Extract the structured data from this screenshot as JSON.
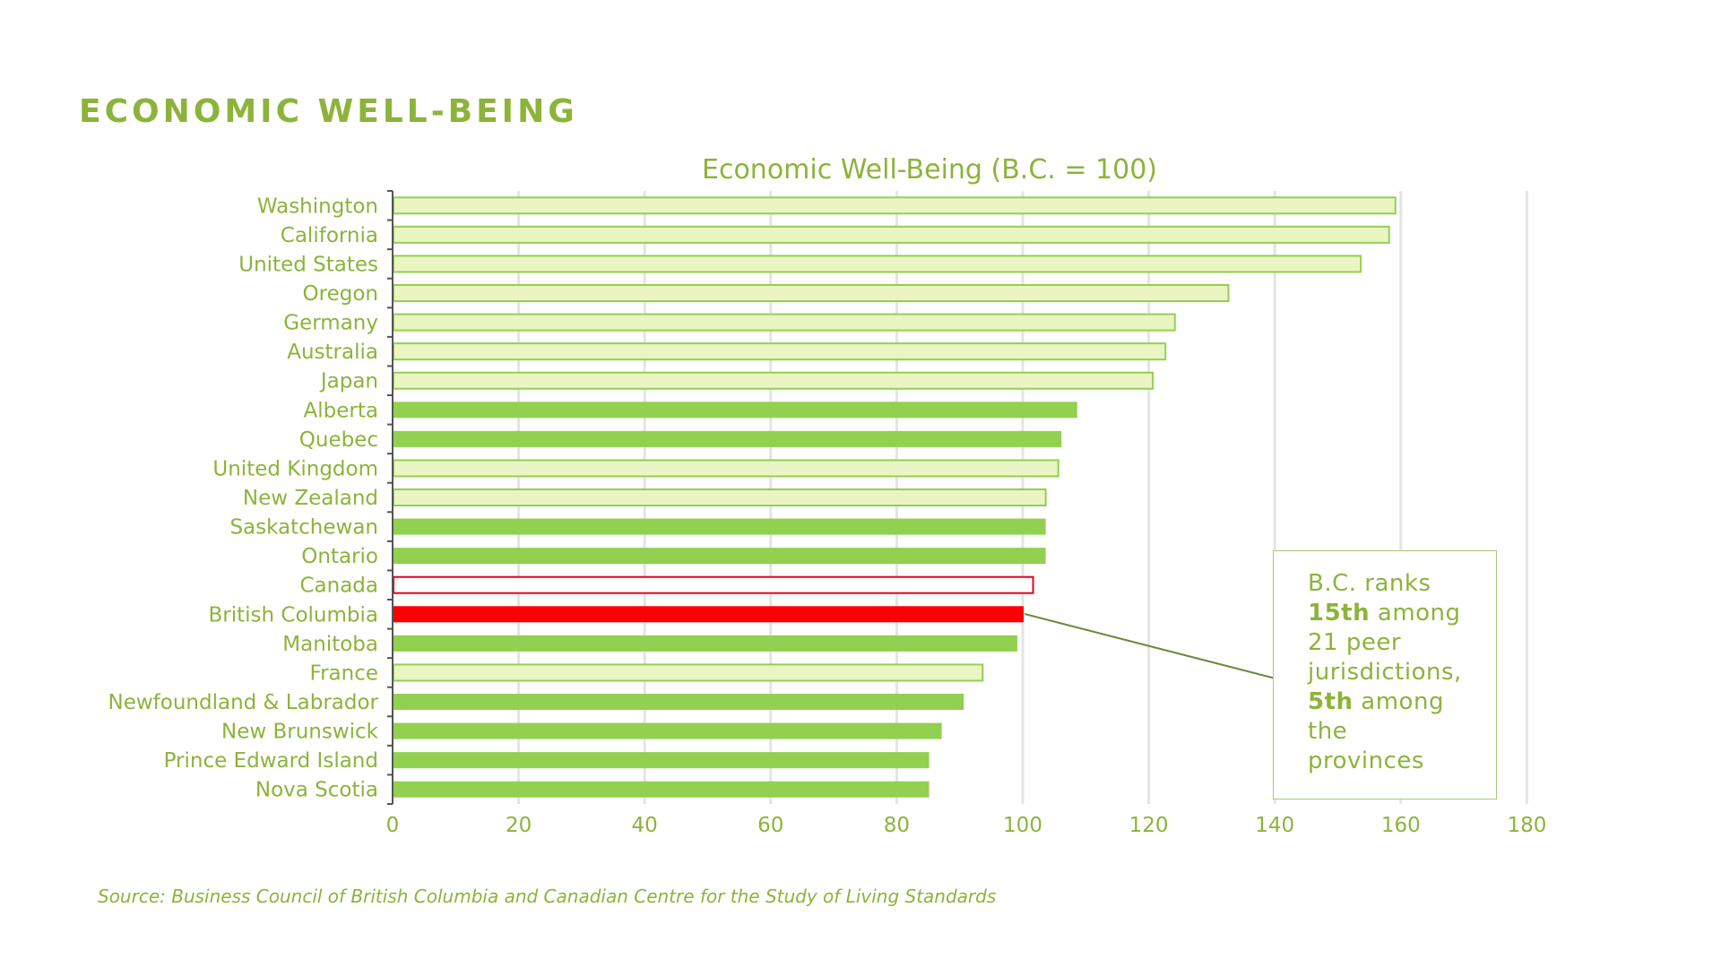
{
  "page": {
    "heading": "ECONOMIC WELL-BEING",
    "source": "Source: Business Council of British Columbia and Canadian Centre for the Study of Living Standards"
  },
  "callout": {
    "line1": "B.C. ranks",
    "rank_bold": "15th",
    "rank_rest": " among",
    "line3": "21 peer",
    "line4": "jurisdictions,",
    "prov_bold": "5th",
    "prov_rest": " among",
    "line6": "the",
    "line7": "provinces"
  },
  "colors": {
    "accent_text": "#8db33a",
    "province_fill": "#92d050",
    "peer_fill": "#ebf5c4",
    "peer_stroke": "#92d050",
    "bc_fill": "#ff0000",
    "canada_stroke": "#e8001c",
    "grid": "#e4e4e4",
    "axis": "#555555",
    "leader": "#6a8a3c"
  },
  "chart_data": {
    "type": "bar",
    "orientation": "horizontal",
    "title": "Economic Well-Being (B.C. = 100)",
    "xlabel": "",
    "ylabel": "",
    "xlim": [
      0,
      180
    ],
    "xticks": [
      0,
      20,
      40,
      60,
      80,
      100,
      120,
      140,
      160,
      180
    ],
    "grid": true,
    "categories": [
      "Washington",
      "California",
      "United States",
      "Oregon",
      "Germany",
      "Australia",
      "Japan",
      "Alberta",
      "Quebec",
      "United Kingdom",
      "New Zealand",
      "Saskatchewan",
      "Ontario",
      "Canada",
      "British Columbia",
      "Manitoba",
      "France",
      "Newfoundland & Labrador",
      "New Brunswick",
      "Prince Edward Island",
      "Nova Scotia"
    ],
    "values": [
      159,
      158,
      153.5,
      132.5,
      124,
      122.5,
      120.5,
      108.5,
      106,
      105.5,
      103.5,
      103.5,
      103.5,
      101.5,
      100,
      99,
      93.5,
      90.5,
      87,
      85,
      85
    ],
    "groups": [
      "peer",
      "peer",
      "peer",
      "peer",
      "peer",
      "peer",
      "peer",
      "province",
      "province",
      "peer",
      "peer",
      "province",
      "province",
      "canada",
      "bc",
      "province",
      "peer",
      "province",
      "province",
      "province",
      "province"
    ]
  }
}
